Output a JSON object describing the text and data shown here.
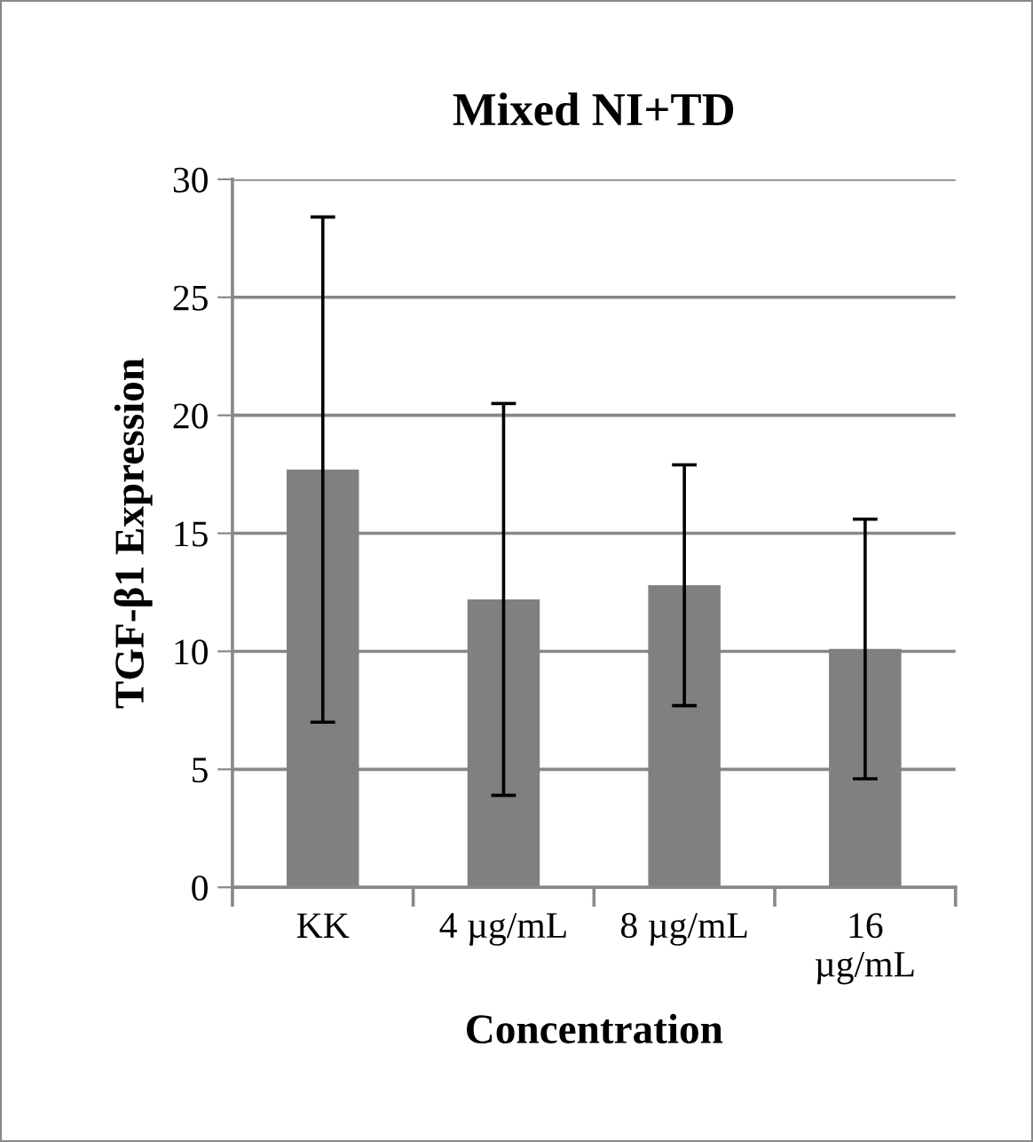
{
  "chart_data": {
    "type": "bar",
    "title": "Mixed NI+TD",
    "xlabel": "Concentration",
    "ylabel": "TGF-β1 Expression",
    "categories": [
      "KK",
      "4 µg/mL",
      "8 µg/mL",
      "16\nµg/mL"
    ],
    "values": [
      17.7,
      12.2,
      12.8,
      10.1
    ],
    "errors": [
      10.7,
      8.3,
      5.1,
      5.5
    ],
    "color": "#808080",
    "ylim": [
      0,
      30
    ],
    "yticks": [
      0,
      5,
      10,
      15,
      20,
      25,
      30
    ],
    "grid": "y",
    "legend": false
  }
}
